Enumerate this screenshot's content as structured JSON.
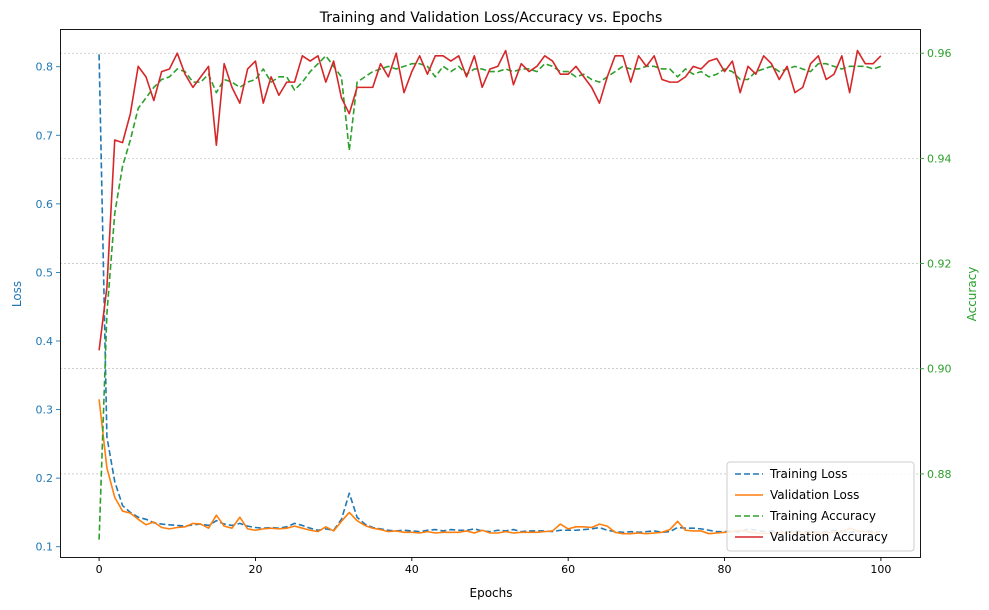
{
  "chart_data": {
    "type": "line",
    "title": "Training and Validation Loss/Accuracy vs. Epochs",
    "xlabel": "Epochs",
    "ylabel_left": "Loss",
    "ylabel_right": "Accuracy",
    "xlim": [
      -5,
      105
    ],
    "ylim_left": [
      0.085,
      0.855
    ],
    "ylim_right": [
      0.8642,
      0.9646
    ],
    "xticks": [
      0,
      20,
      40,
      60,
      80,
      100
    ],
    "xtick_labels": [
      "0",
      "20",
      "40",
      "60",
      "80",
      "100"
    ],
    "yticks_left": [
      0.1,
      0.2,
      0.3,
      0.4,
      0.5,
      0.6,
      0.7,
      0.8
    ],
    "ytick_labels_left": [
      "0.1",
      "0.2",
      "0.3",
      "0.4",
      "0.5",
      "0.6",
      "0.7",
      "0.8"
    ],
    "yticks_right": [
      0.88,
      0.9,
      0.92,
      0.94,
      0.96
    ],
    "ytick_labels_right": [
      "0.88",
      "0.90",
      "0.92",
      "0.94",
      "0.96"
    ],
    "grid": "horizontal, right axis",
    "legend_position": "bottom-right",
    "colors": {
      "left_axis": "#1f77b4",
      "right_axis": "#2ca02c",
      "grid": "#b0b0b0"
    },
    "x": [
      0,
      1,
      2,
      3,
      4,
      5,
      6,
      7,
      8,
      9,
      10,
      11,
      12,
      13,
      14,
      15,
      16,
      17,
      18,
      19,
      20,
      21,
      22,
      23,
      24,
      25,
      26,
      27,
      28,
      29,
      30,
      31,
      32,
      33,
      34,
      35,
      36,
      37,
      38,
      39,
      40,
      41,
      42,
      43,
      44,
      45,
      46,
      47,
      48,
      49,
      50,
      51,
      52,
      53,
      54,
      55,
      56,
      57,
      58,
      59,
      60,
      61,
      62,
      63,
      64,
      65,
      66,
      67,
      68,
      69,
      70,
      71,
      72,
      73,
      74,
      75,
      76,
      77,
      78,
      79,
      80,
      81,
      82,
      83,
      84,
      85,
      86,
      87,
      88,
      89,
      90,
      91,
      92,
      93,
      94,
      95,
      96,
      97,
      98,
      99,
      100
    ],
    "series": [
      {
        "name": "Training Loss",
        "axis": "left",
        "color": "#1f77b4",
        "style": "dashed",
        "values": [
          0.818,
          0.26,
          0.195,
          0.16,
          0.15,
          0.143,
          0.14,
          0.135,
          0.133,
          0.132,
          0.131,
          0.13,
          0.132,
          0.133,
          0.131,
          0.138,
          0.133,
          0.131,
          0.134,
          0.13,
          0.128,
          0.127,
          0.128,
          0.127,
          0.129,
          0.134,
          0.131,
          0.127,
          0.124,
          0.126,
          0.124,
          0.14,
          0.178,
          0.143,
          0.133,
          0.128,
          0.126,
          0.124,
          0.123,
          0.124,
          0.123,
          0.122,
          0.124,
          0.125,
          0.123,
          0.125,
          0.124,
          0.124,
          0.126,
          0.123,
          0.122,
          0.124,
          0.123,
          0.125,
          0.122,
          0.123,
          0.123,
          0.123,
          0.122,
          0.124,
          0.124,
          0.124,
          0.125,
          0.126,
          0.128,
          0.124,
          0.122,
          0.121,
          0.122,
          0.121,
          0.122,
          0.123,
          0.121,
          0.122,
          0.128,
          0.127,
          0.127,
          0.126,
          0.124,
          0.122,
          0.122,
          0.123,
          0.121,
          0.126,
          0.124,
          0.122,
          0.123,
          0.121,
          0.122,
          0.123,
          0.122,
          0.122,
          0.121,
          0.122,
          0.124,
          0.123,
          0.121,
          0.122,
          0.123,
          0.122,
          0.122
        ]
      },
      {
        "name": "Validation Loss",
        "axis": "left",
        "color": "#ff7f0e",
        "style": "solid",
        "values": [
          0.315,
          0.215,
          0.172,
          0.152,
          0.149,
          0.14,
          0.132,
          0.136,
          0.128,
          0.126,
          0.128,
          0.129,
          0.134,
          0.133,
          0.127,
          0.146,
          0.13,
          0.127,
          0.143,
          0.126,
          0.124,
          0.126,
          0.127,
          0.126,
          0.127,
          0.13,
          0.127,
          0.124,
          0.122,
          0.129,
          0.123,
          0.137,
          0.15,
          0.138,
          0.131,
          0.127,
          0.125,
          0.122,
          0.123,
          0.121,
          0.121,
          0.12,
          0.122,
          0.12,
          0.121,
          0.121,
          0.121,
          0.123,
          0.12,
          0.124,
          0.12,
          0.12,
          0.122,
          0.12,
          0.121,
          0.121,
          0.121,
          0.122,
          0.123,
          0.133,
          0.126,
          0.129,
          0.129,
          0.128,
          0.133,
          0.13,
          0.121,
          0.119,
          0.119,
          0.12,
          0.119,
          0.12,
          0.121,
          0.125,
          0.137,
          0.124,
          0.123,
          0.123,
          0.119,
          0.12,
          0.121,
          0.122,
          0.124,
          0.122,
          0.12,
          0.119,
          0.12,
          0.121,
          0.12,
          0.122,
          0.12,
          0.121,
          0.12,
          0.12,
          0.121,
          0.121,
          0.127,
          0.123,
          0.122,
          0.12,
          0.122
        ]
      },
      {
        "name": "Training Accuracy",
        "axis": "right",
        "color": "#2ca02c",
        "style": "dashed",
        "values": [
          0.8675,
          0.9105,
          0.9295,
          0.9385,
          0.9435,
          0.9495,
          0.9515,
          0.9535,
          0.955,
          0.9555,
          0.957,
          0.9565,
          0.9545,
          0.9545,
          0.956,
          0.9525,
          0.955,
          0.9545,
          0.9535,
          0.9545,
          0.955,
          0.957,
          0.9545,
          0.9555,
          0.9555,
          0.953,
          0.9545,
          0.9565,
          0.958,
          0.9595,
          0.9575,
          0.9555,
          0.9415,
          0.9545,
          0.9555,
          0.9565,
          0.957,
          0.9575,
          0.957,
          0.9575,
          0.958,
          0.958,
          0.9575,
          0.9555,
          0.9575,
          0.9565,
          0.9575,
          0.956,
          0.957,
          0.957,
          0.9565,
          0.9565,
          0.957,
          0.9565,
          0.957,
          0.957,
          0.9565,
          0.958,
          0.9575,
          0.9565,
          0.9565,
          0.9555,
          0.956,
          0.955,
          0.9545,
          0.9555,
          0.9565,
          0.9575,
          0.957,
          0.957,
          0.9575,
          0.9575,
          0.957,
          0.957,
          0.9555,
          0.957,
          0.956,
          0.9565,
          0.9555,
          0.956,
          0.957,
          0.9565,
          0.955,
          0.955,
          0.9565,
          0.957,
          0.9575,
          0.9565,
          0.957,
          0.9575,
          0.957,
          0.9565,
          0.958,
          0.958,
          0.9575,
          0.957,
          0.9575,
          0.9575,
          0.9575,
          0.957,
          0.9575
        ]
      },
      {
        "name": "Validation Accuracy",
        "axis": "right",
        "color": "#d62728",
        "style": "solid",
        "values": [
          0.9035,
          0.9155,
          0.9435,
          0.943,
          0.9485,
          0.9575,
          0.9555,
          0.951,
          0.9565,
          0.957,
          0.96,
          0.956,
          0.9535,
          0.9555,
          0.9575,
          0.9425,
          0.958,
          0.9535,
          0.9505,
          0.957,
          0.9585,
          0.9505,
          0.9555,
          0.952,
          0.9545,
          0.9545,
          0.9595,
          0.9585,
          0.9595,
          0.9545,
          0.9585,
          0.9515,
          0.9485,
          0.9535,
          0.9535,
          0.9535,
          0.958,
          0.9555,
          0.96,
          0.9525,
          0.9565,
          0.9595,
          0.956,
          0.9595,
          0.9595,
          0.9585,
          0.9595,
          0.9555,
          0.9595,
          0.9535,
          0.957,
          0.9575,
          0.9605,
          0.954,
          0.958,
          0.9565,
          0.9575,
          0.9595,
          0.9585,
          0.956,
          0.956,
          0.9575,
          0.9555,
          0.9535,
          0.9505,
          0.9555,
          0.9595,
          0.9595,
          0.9545,
          0.9595,
          0.9575,
          0.9595,
          0.955,
          0.9545,
          0.9545,
          0.9555,
          0.9575,
          0.957,
          0.9585,
          0.959,
          0.9565,
          0.9585,
          0.9525,
          0.9575,
          0.956,
          0.9595,
          0.958,
          0.955,
          0.9575,
          0.9525,
          0.9535,
          0.958,
          0.9595,
          0.955,
          0.956,
          0.9595,
          0.9525,
          0.9605,
          0.958,
          0.958,
          0.9595
        ]
      }
    ]
  }
}
